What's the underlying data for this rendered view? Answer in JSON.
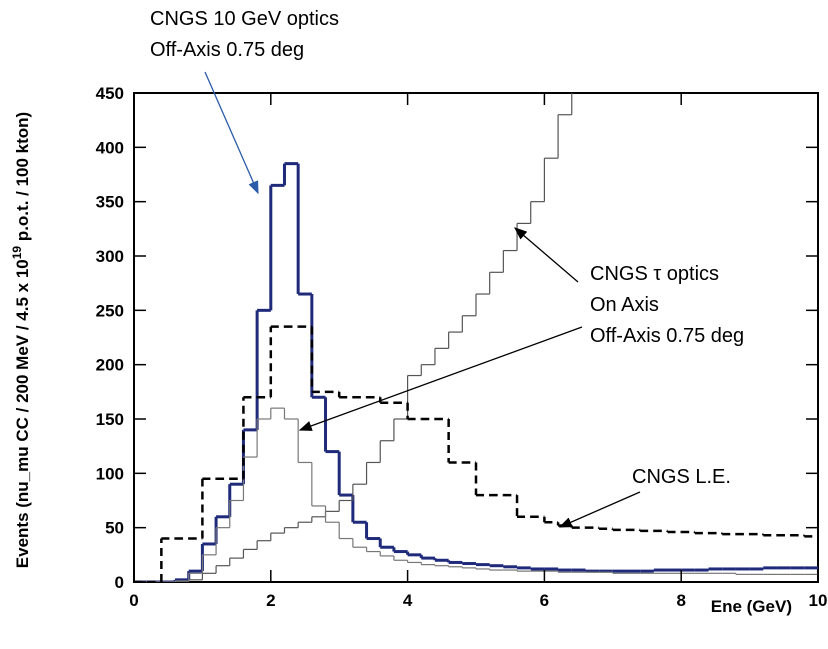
{
  "chart_data": {
    "type": "histogram",
    "x_label": "Ene (GeV)",
    "y_label": [
      "Events (nu_mu CC / 200 MeV / 4.5 x 10",
      "19",
      " p.o.t. / 100 kton)"
    ],
    "xlim": [
      0,
      10
    ],
    "ylim": [
      0,
      450
    ],
    "xticks": [
      0,
      2,
      4,
      6,
      8,
      10
    ],
    "yticks": [
      0,
      50,
      100,
      150,
      200,
      250,
      300,
      350,
      400,
      450
    ],
    "bins": [
      0,
      0.2,
      0.4,
      0.6,
      0.8,
      1,
      1.2,
      1.4,
      1.6,
      1.8,
      2,
      2.2,
      2.4,
      2.6,
      2.8,
      3,
      3.2,
      3.4,
      3.6,
      3.8,
      4,
      4.2,
      4.4,
      4.6,
      4.8,
      5,
      5.2,
      5.4,
      5.6,
      5.8,
      6,
      6.2,
      6.4,
      6.6,
      6.8,
      7,
      7.2,
      7.4,
      7.6,
      7.8,
      8,
      8.2,
      8.4,
      8.6,
      8.8,
      9,
      9.2,
      9.4,
      9.6,
      9.8,
      10
    ],
    "series": [
      {
        "color": "#1f2a7a",
        "width": 3,
        "dash": "none",
        "values": [
          0,
          0,
          0,
          2,
          10,
          35,
          60,
          90,
          140,
          250,
          365,
          385,
          265,
          170,
          120,
          80,
          55,
          40,
          32,
          28,
          25,
          22,
          20,
          18,
          17,
          16,
          15,
          14,
          13,
          12,
          12,
          11,
          11,
          10,
          10,
          10,
          10,
          10,
          11,
          11,
          11,
          11,
          12,
          12,
          12,
          12,
          13,
          13,
          13,
          13
        ]
      },
      {
        "color": "#555555",
        "width": 1.2,
        "dash": "none",
        "values": [
          0,
          0,
          0,
          0,
          2,
          8,
          15,
          22,
          30,
          38,
          45,
          50,
          55,
          60,
          65,
          75,
          90,
          110,
          130,
          150,
          190,
          200,
          215,
          230,
          245,
          265,
          285,
          305,
          330,
          350,
          390,
          430,
          460,
          null,
          null,
          null,
          null,
          null,
          null,
          null,
          null,
          null,
          null,
          null,
          null,
          null,
          null,
          null,
          null,
          null
        ]
      },
      {
        "color": "#777777",
        "width": 1.2,
        "dash": "none",
        "values": [
          0,
          0,
          0,
          1,
          8,
          25,
          50,
          75,
          115,
          150,
          160,
          150,
          110,
          70,
          55,
          40,
          32,
          28,
          24,
          20,
          18,
          16,
          15,
          14,
          13,
          12,
          11,
          11,
          10,
          10,
          10,
          9,
          9,
          9,
          9,
          8,
          8,
          8,
          8,
          8,
          8,
          8,
          8,
          8,
          7,
          7,
          7,
          7,
          7,
          7
        ]
      },
      {
        "color": "#000000",
        "width": 2.5,
        "dash": "8 5",
        "values": [
          0,
          0,
          40,
          40,
          40,
          95,
          95,
          95,
          170,
          170,
          235,
          235,
          235,
          175,
          175,
          170,
          170,
          170,
          165,
          165,
          150,
          150,
          150,
          110,
          110,
          80,
          80,
          80,
          60,
          60,
          55,
          52,
          50,
          50,
          49,
          48,
          48,
          47,
          47,
          46,
          46,
          45,
          45,
          44,
          44,
          44,
          43,
          43,
          43,
          42
        ]
      }
    ],
    "annotations": [
      {
        "lines": [
          "CNGS 10 GeV optics",
          "Off-Axis 0.75 deg"
        ],
        "colors": [
          "#000000",
          "#2a5ca8"
        ]
      },
      {
        "lines": [
          "CNGS τ optics",
          "On Axis",
          "Off-Axis 0.75 deg"
        ],
        "colors": [
          "#000000",
          "#000000",
          "#000000"
        ]
      },
      {
        "lines": [
          "CNGS L.E."
        ],
        "colors": [
          "#000000"
        ]
      }
    ]
  }
}
